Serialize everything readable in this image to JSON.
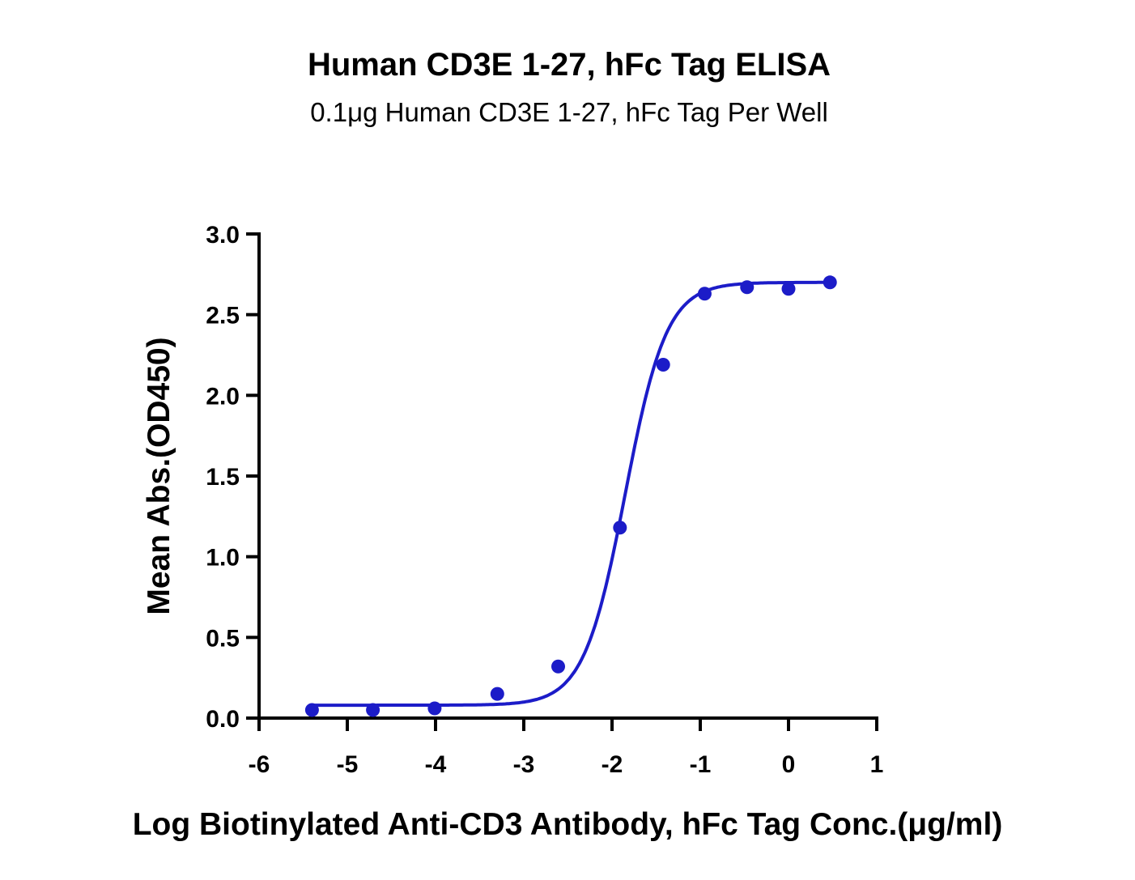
{
  "chart_data": {
    "type": "scatter",
    "title": "Human CD3E 1-27, hFc Tag ELISA",
    "subtitle": "0.1μg Human CD3E 1-27, hFc Tag Per Well",
    "xlabel": "Log Biotinylated Anti-CD3 Antibody, hFc Tag Conc.(μg/ml)",
    "ylabel": "Mean Abs.(OD450)",
    "xlim": [
      -6,
      1
    ],
    "ylim": [
      0,
      3.0
    ],
    "xticks": [
      "-6",
      "-5",
      "-4",
      "-3",
      "-2",
      "-1",
      "0",
      "1"
    ],
    "yticks": [
      "0.0",
      "0.5",
      "1.0",
      "1.5",
      "2.0",
      "2.5",
      "3.0"
    ],
    "grid": false,
    "color": "#1c1cc8",
    "points": [
      {
        "x": -5.4,
        "y": 0.05
      },
      {
        "x": -4.71,
        "y": 0.05
      },
      {
        "x": -4.01,
        "y": 0.06
      },
      {
        "x": -3.3,
        "y": 0.15
      },
      {
        "x": -2.61,
        "y": 0.32
      },
      {
        "x": -1.91,
        "y": 1.18
      },
      {
        "x": -1.42,
        "y": 2.19
      },
      {
        "x": -0.95,
        "y": 2.63
      },
      {
        "x": -0.47,
        "y": 2.67
      },
      {
        "x": 0.0,
        "y": 2.66
      },
      {
        "x": 0.47,
        "y": 2.7
      }
    ],
    "fit": {
      "model": "4PL",
      "bottom": 0.08,
      "top": 2.7,
      "logEC50": -1.85,
      "hill": 1.85,
      "x_range": [
        -5.4,
        0.47
      ]
    }
  }
}
